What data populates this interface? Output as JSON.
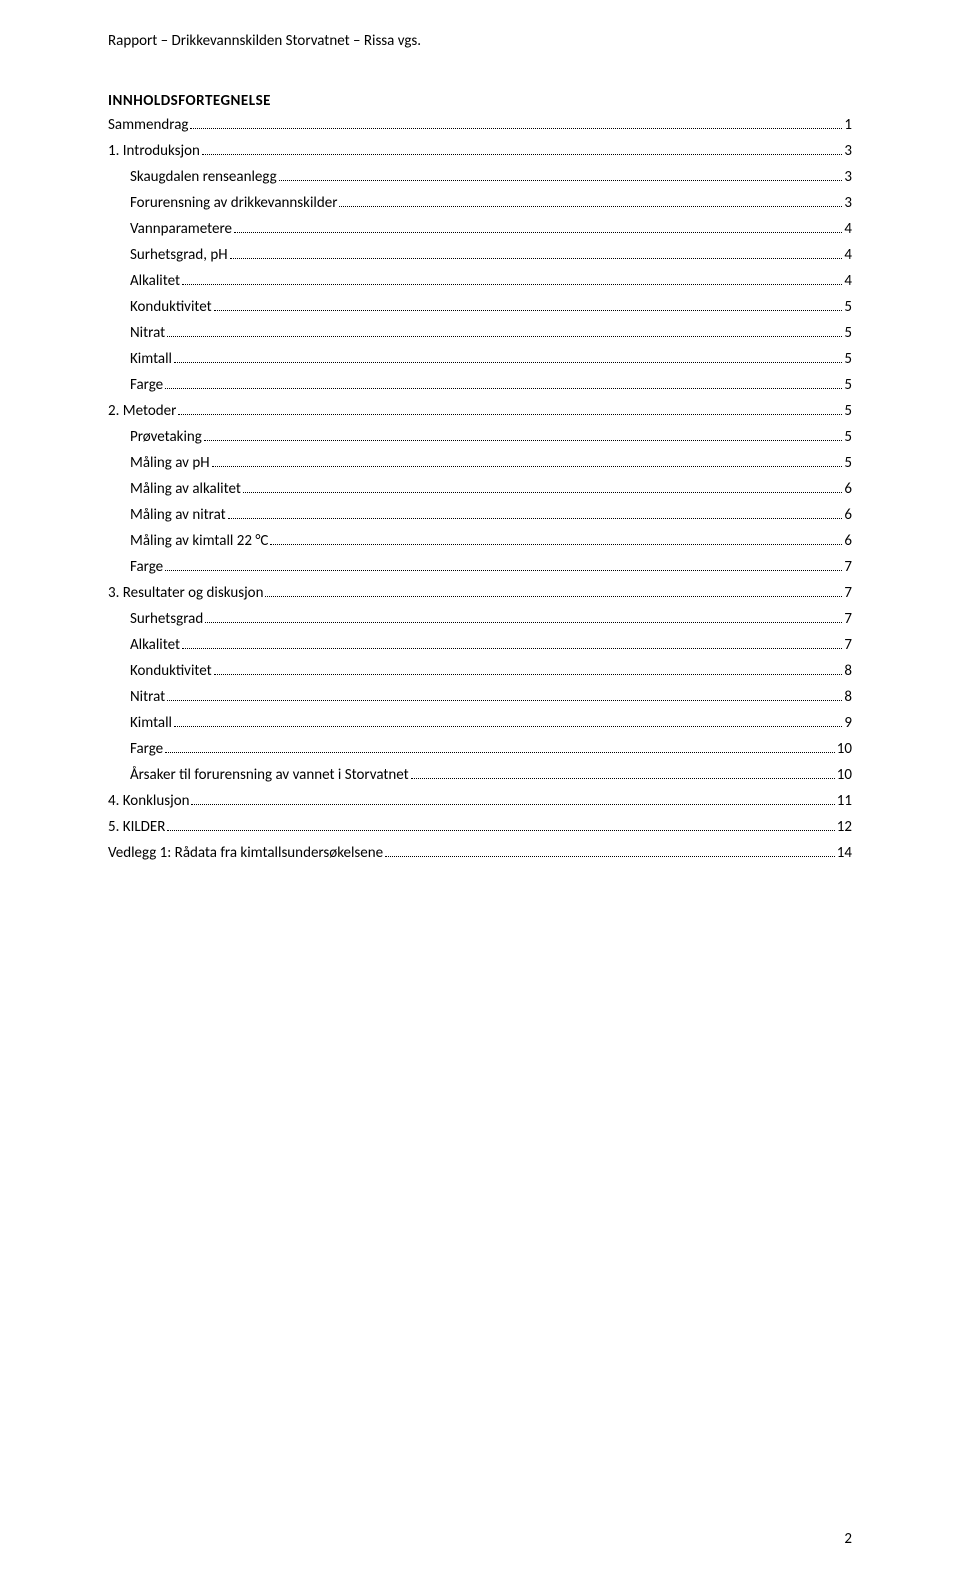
{
  "header": "Rapport – Drikkevannskilden Storvatnet – Rissa vgs.",
  "toc_title": "INNHOLDSFORTEGNELSE",
  "page_number": "2",
  "toc": [
    {
      "label": "Sammendrag",
      "page": "1",
      "indent": 0
    },
    {
      "label": "1. Introduksjon",
      "page": "3",
      "indent": 0
    },
    {
      "label": "Skaugdalen renseanlegg",
      "page": "3",
      "indent": 1
    },
    {
      "label": "Forurensning av drikkevannskilder",
      "page": "3",
      "indent": 1
    },
    {
      "label": "Vannparametere",
      "page": "4",
      "indent": 1
    },
    {
      "label": "Surhetsgrad, pH",
      "page": "4",
      "indent": 1
    },
    {
      "label": "Alkalitet",
      "page": "4",
      "indent": 1
    },
    {
      "label": "Konduktivitet",
      "page": "5",
      "indent": 1
    },
    {
      "label": "Nitrat",
      "page": "5",
      "indent": 1
    },
    {
      "label": "Kimtall",
      "page": "5",
      "indent": 1
    },
    {
      "label": "Farge",
      "page": "5",
      "indent": 1
    },
    {
      "label": "2. Metoder",
      "page": "5",
      "indent": 0
    },
    {
      "label": "Prøvetaking",
      "page": "5",
      "indent": 1
    },
    {
      "label": "Måling av pH",
      "page": "5",
      "indent": 1
    },
    {
      "label": "Måling av alkalitet",
      "page": "6",
      "indent": 1
    },
    {
      "label": "Måling av nitrat",
      "page": "6",
      "indent": 1
    },
    {
      "label": "Måling av kimtall 22 °C",
      "page": "6",
      "indent": 1
    },
    {
      "label": "Farge",
      "page": "7",
      "indent": 1
    },
    {
      "label": "3. Resultater og diskusjon",
      "page": "7",
      "indent": 0
    },
    {
      "label": "Surhetsgrad",
      "page": "7",
      "indent": 1
    },
    {
      "label": "Alkalitet",
      "page": "7",
      "indent": 1
    },
    {
      "label": "Konduktivitet",
      "page": "8",
      "indent": 1
    },
    {
      "label": "Nitrat",
      "page": "8",
      "indent": 1
    },
    {
      "label": "Kimtall",
      "page": "9",
      "indent": 1
    },
    {
      "label": "Farge",
      "page": "10",
      "indent": 1
    },
    {
      "label": "Årsaker til forurensning av vannet i Storvatnet",
      "page": "10",
      "indent": 1
    },
    {
      "label": "4. Konklusjon",
      "page": "11",
      "indent": 0
    },
    {
      "label": "5. KILDER",
      "page": "12",
      "indent": 0
    },
    {
      "label": "Vedlegg 1: Rådata fra kimtallsundersøkelsene",
      "page": "14",
      "indent": 0
    }
  ]
}
